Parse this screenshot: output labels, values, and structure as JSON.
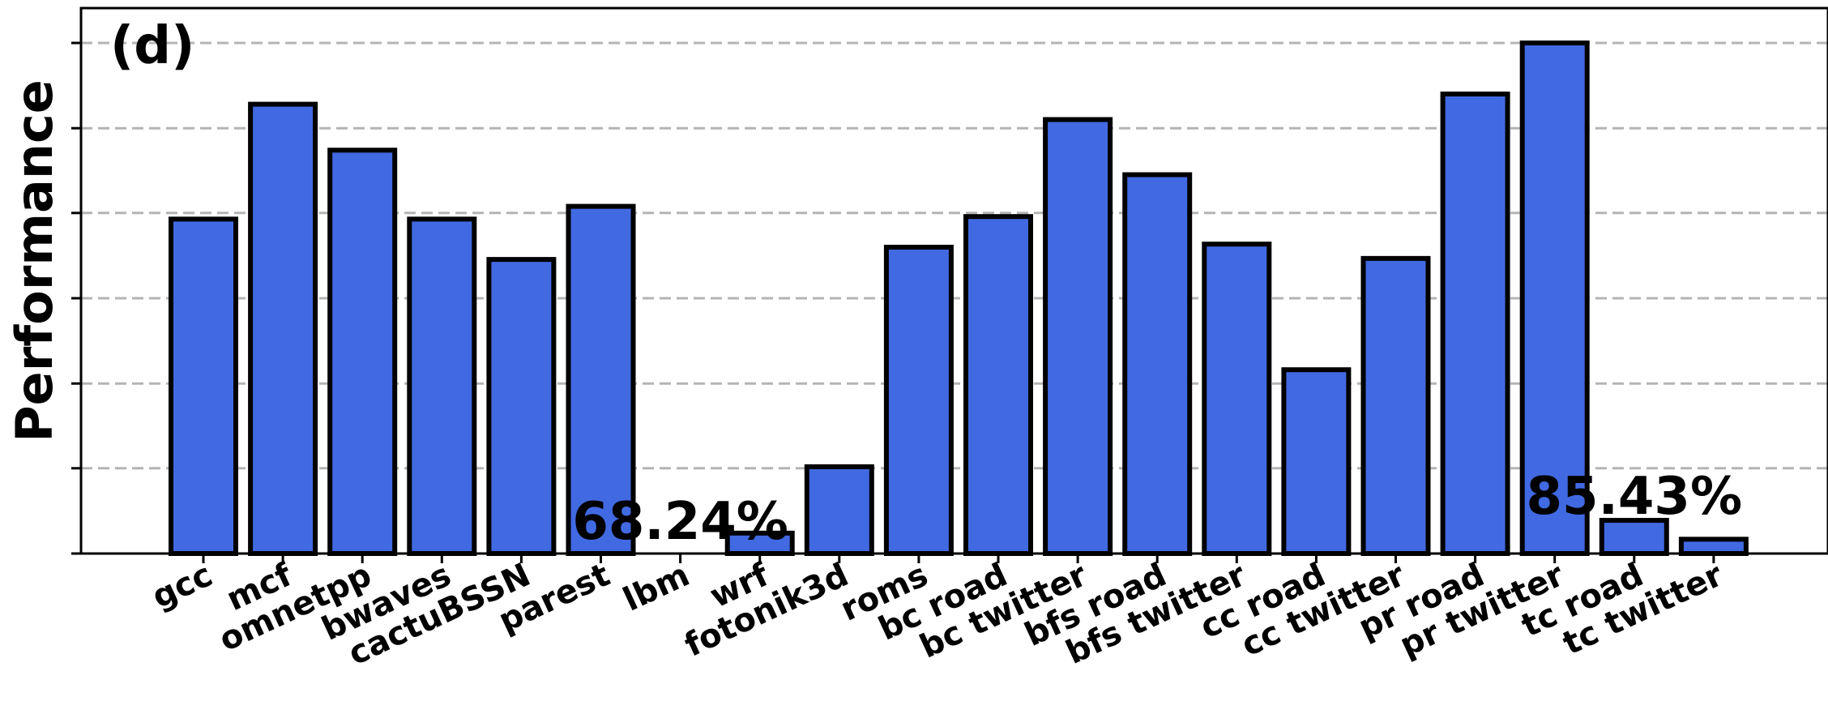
{
  "chart_data": {
    "type": "bar",
    "panel_label": "(d)",
    "ylabel": "Performance",
    "xlabel": "",
    "title": "",
    "ylim": [
      0,
      1.0
    ],
    "yticks": [
      0.0,
      0.167,
      0.333,
      0.5,
      0.667,
      0.833,
      1.0
    ],
    "grid": "horizontal dashed",
    "colors": {
      "bar": "#4169E1",
      "edge": "#000000",
      "grid": "#b4b4b4"
    },
    "categories": [
      "gcc",
      "mcf",
      "omnetpp",
      "bwaves",
      "cactuBSSN",
      "parest",
      "lbm",
      "wrf",
      "fotonik3d",
      "roms",
      "bc road",
      "bc twitter",
      "bfs road",
      "bfs twitter",
      "cc road",
      "cc twitter",
      "pr road",
      "pr twitter",
      "tc road",
      "tc twitter"
    ],
    "values": [
      0.655,
      0.88,
      0.79,
      0.655,
      0.576,
      0.68,
      0.0,
      0.04,
      0.17,
      0.6,
      0.66,
      0.85,
      0.742,
      0.606,
      0.36,
      0.578,
      0.9,
      1.0,
      0.065,
      0.028
    ],
    "annotations": [
      {
        "text": "68.24%",
        "category": "lbm"
      },
      {
        "text": "85.43%",
        "category": "tc road"
      }
    ]
  }
}
